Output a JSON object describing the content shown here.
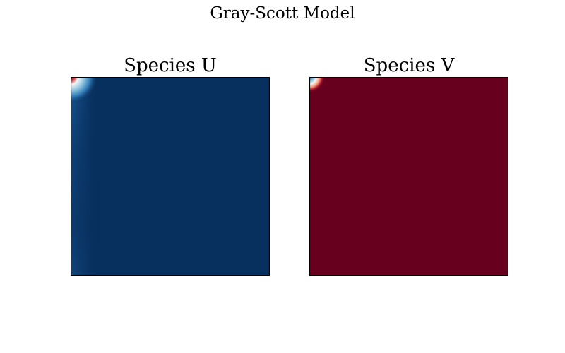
{
  "figure": {
    "title": "Gray-Scott Model"
  },
  "chart_data": [
    {
      "type": "heatmap",
      "title": "Species U",
      "colormap": "RdBu",
      "axes_visible": false,
      "grid": false,
      "background_color": "#08305e",
      "field": {
        "base_value": "low",
        "features": [
          {
            "kind": "peak",
            "location": "top-left corner",
            "value": "high"
          },
          {
            "kind": "light halo",
            "location": "top-left corner"
          },
          {
            "kind": "faint lighter band",
            "location": "left edge"
          }
        ]
      }
    },
    {
      "type": "heatmap",
      "title": "Species V",
      "colormap": "RdBu",
      "axes_visible": false,
      "grid": false,
      "background_color": "#67001f",
      "field": {
        "base_value": "high",
        "features": [
          {
            "kind": "spot",
            "location": "top-left corner",
            "value": "low"
          }
        ]
      }
    }
  ]
}
